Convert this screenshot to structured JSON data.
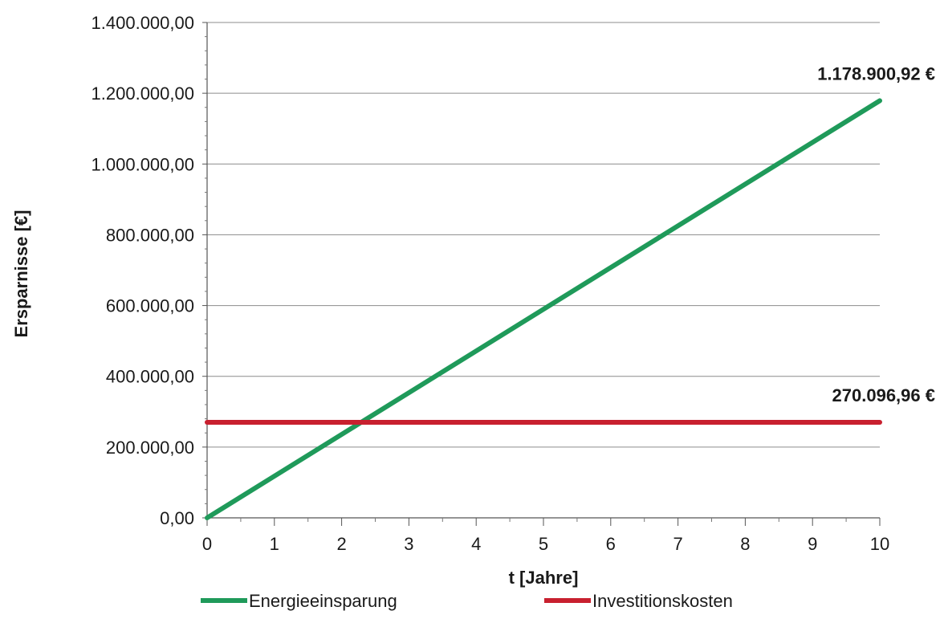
{
  "chart_data": {
    "type": "line",
    "xlabel": "t [Jahre]",
    "ylabel": "Ersparnisse [€]",
    "xlim": [
      0,
      10
    ],
    "ylim": [
      0,
      1400000
    ],
    "x_ticks": [
      "0",
      "1",
      "2",
      "3",
      "4",
      "5",
      "6",
      "7",
      "8",
      "9",
      "10"
    ],
    "y_ticks": [
      "0,00",
      "200.000,00",
      "400.000,00",
      "600.000,00",
      "800.000,00",
      "1.000.000,00",
      "1.200.000,00",
      "1.400.000,00"
    ],
    "grid": "horizontal",
    "legend_position": "bottom",
    "series": [
      {
        "name": "Energieeinsparung",
        "color": "#1f9a5a",
        "x": [
          0,
          10
        ],
        "values": [
          0,
          1178900.92
        ],
        "end_label": "1.178.900,92 €"
      },
      {
        "name": "Investitionskosten",
        "color": "#c8202f",
        "x": [
          0,
          10
        ],
        "values": [
          270096.96,
          270096.96
        ],
        "end_label": "270.096,96 €"
      }
    ]
  }
}
